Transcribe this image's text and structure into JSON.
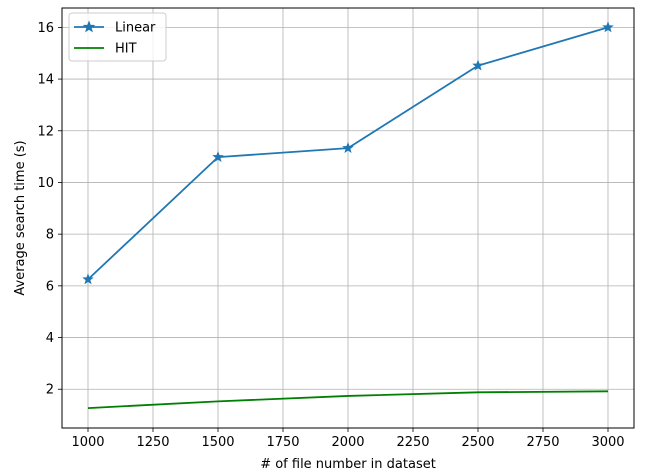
{
  "chart_data": {
    "type": "line",
    "xlabel": "# of file number in dataset",
    "ylabel": "Average search time (s)",
    "x_ticks": [
      1000,
      1250,
      1500,
      1750,
      2000,
      2250,
      2500,
      2750,
      3000
    ],
    "y_ticks": [
      2,
      4,
      6,
      8,
      10,
      12,
      14,
      16
    ],
    "xlim": [
      900,
      3100
    ],
    "ylim": [
      0.5,
      16.75
    ],
    "grid": true,
    "legend_position": "top-left",
    "series": [
      {
        "name": "Linear",
        "color": "#1f77b4",
        "marker": "star",
        "x": [
          1000,
          1500,
          2000,
          2500,
          3000
        ],
        "y": [
          6.25,
          10.98,
          11.33,
          14.52,
          16.0
        ]
      },
      {
        "name": "HIT",
        "color": "#008000",
        "marker": "none",
        "x": [
          1000,
          1500,
          2000,
          2500,
          3000
        ],
        "y": [
          1.27,
          1.53,
          1.74,
          1.88,
          1.92
        ]
      }
    ]
  }
}
